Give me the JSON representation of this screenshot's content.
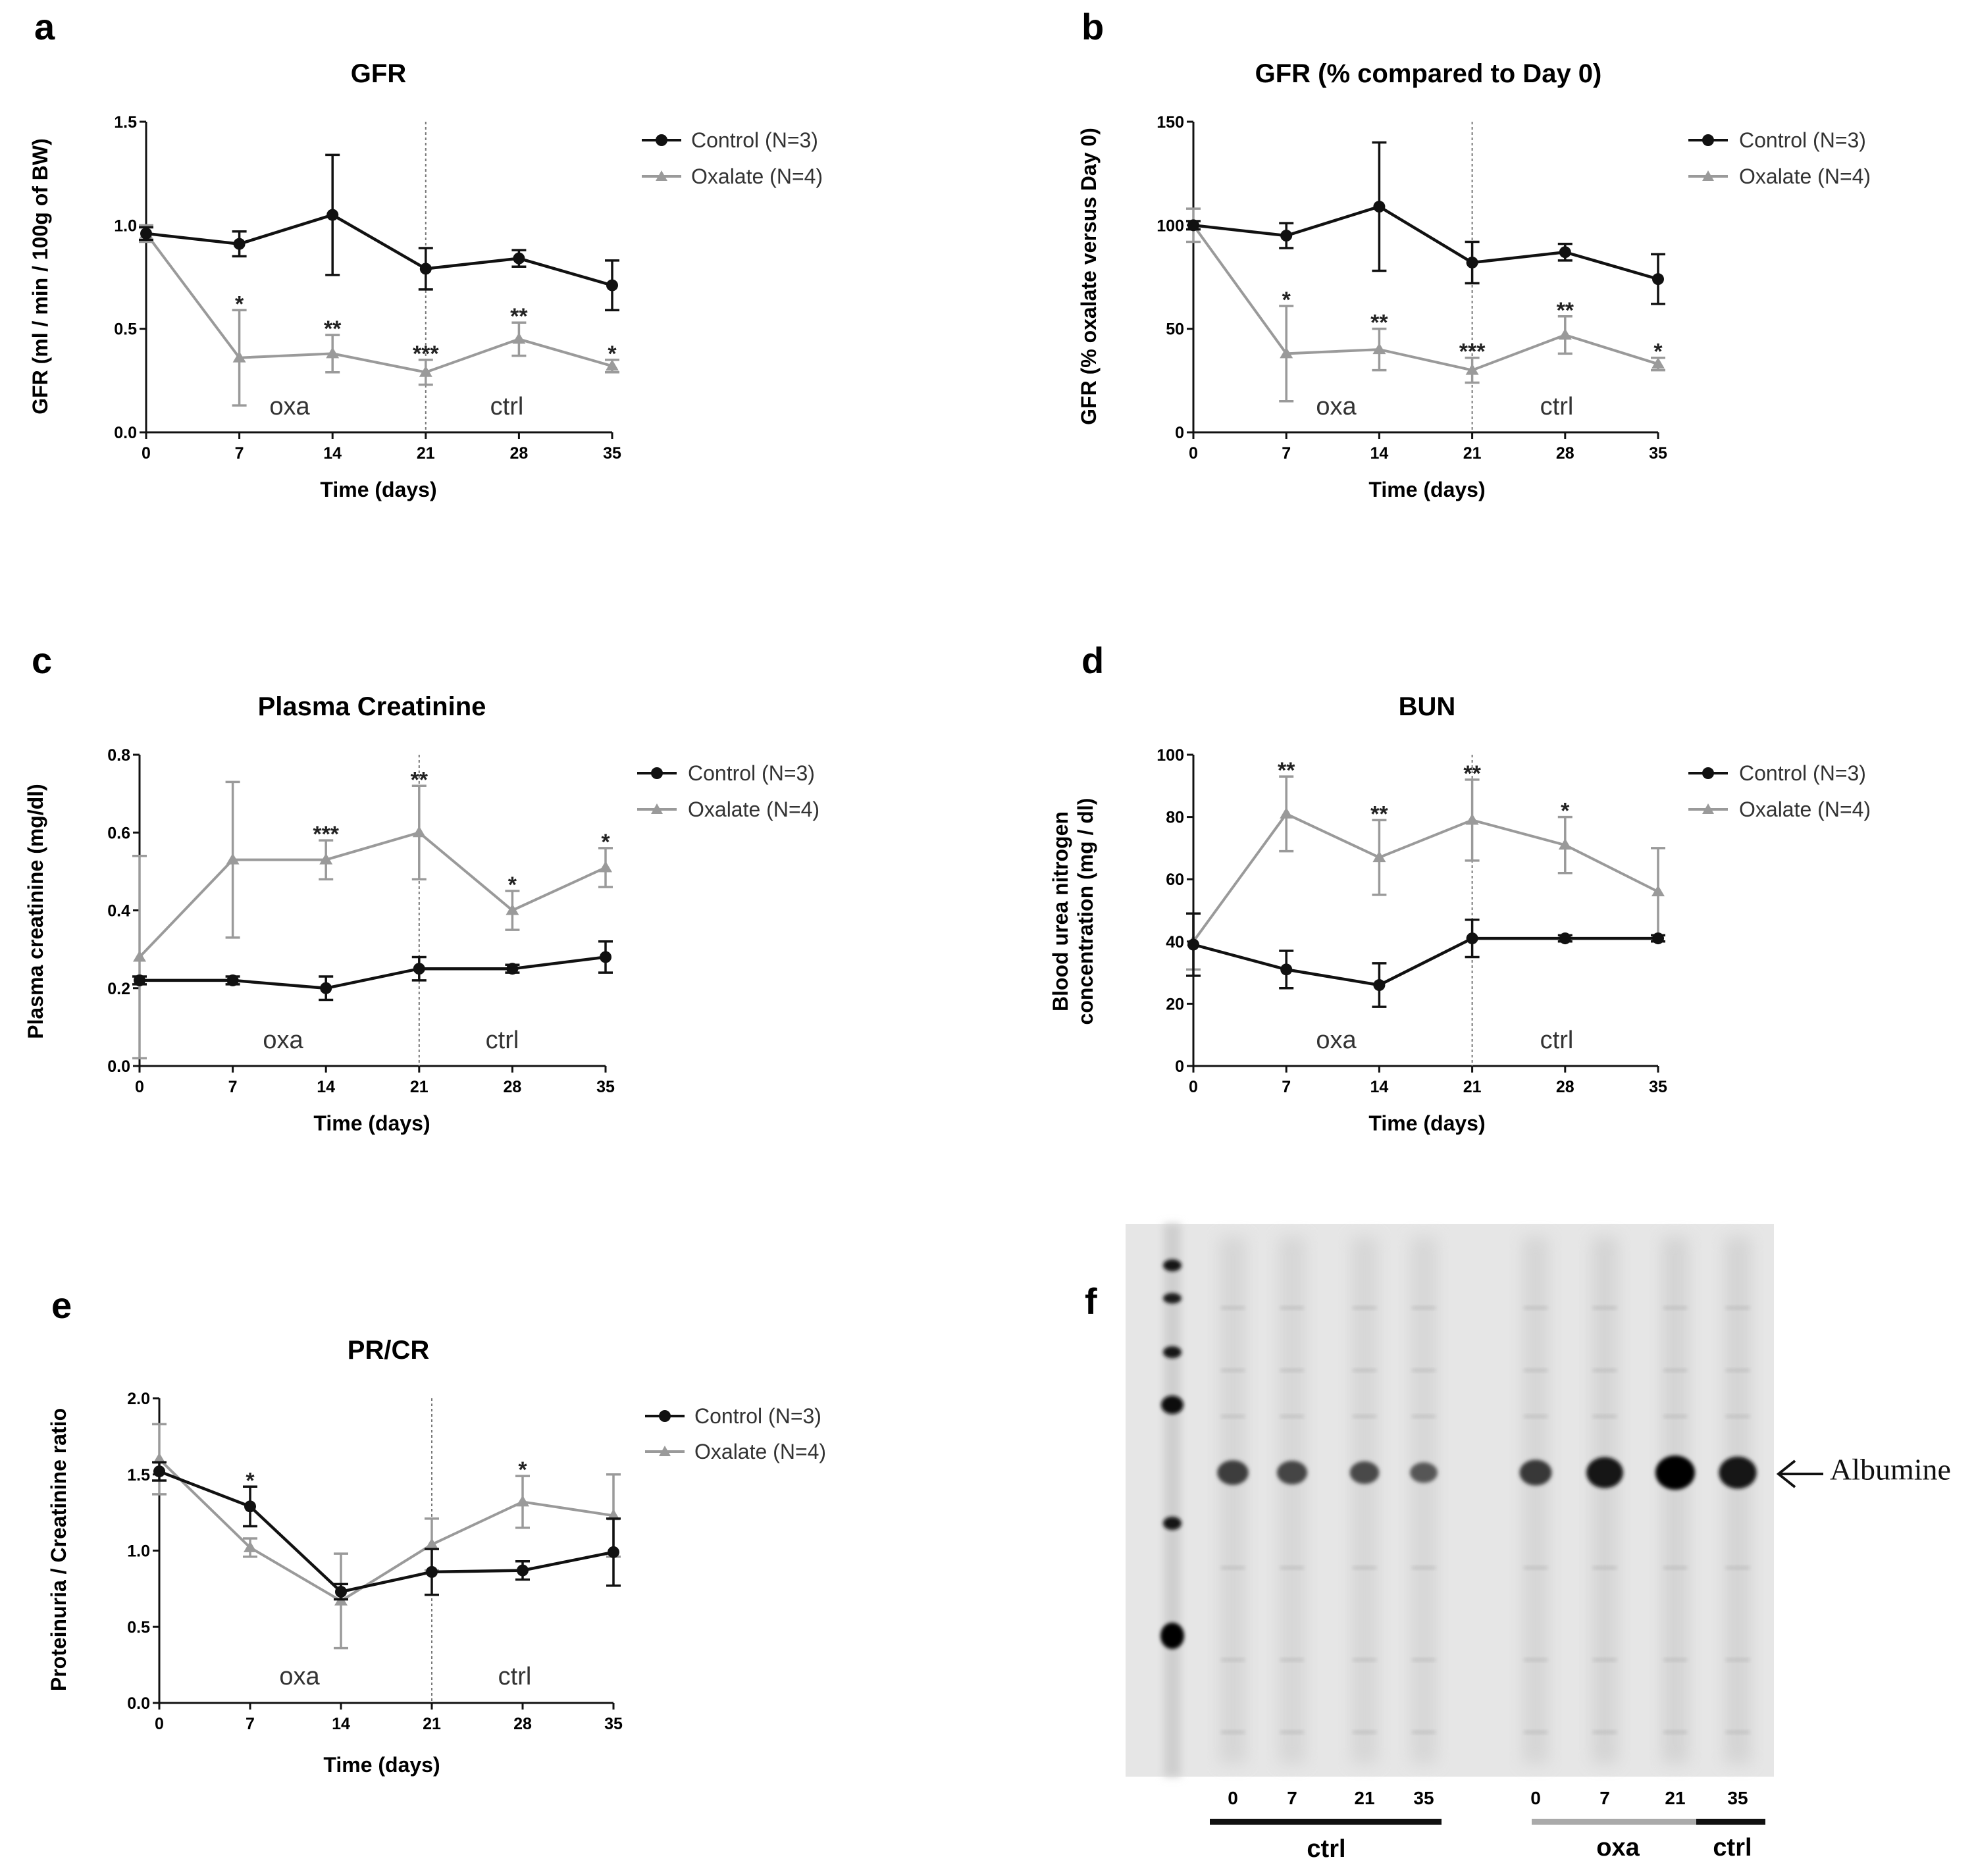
{
  "colors": {
    "control": "#111111",
    "oxalate": "#9a9a9a"
  },
  "chart_data": [
    {
      "panel": "a",
      "type": "line",
      "title": "GFR",
      "xlabel": "Time (days)",
      "ylabel": "GFR (ml / min / 100g of BW)",
      "x": [
        0,
        7,
        14,
        21,
        28,
        35
      ],
      "xticks": [
        "0",
        "7",
        "14",
        "21",
        "28",
        "35"
      ],
      "ylim": [
        0,
        1.5
      ],
      "yticks": [
        "0.0",
        "0.5",
        "1.0",
        "1.5"
      ],
      "yticks_values": [
        0,
        0.5,
        1.0,
        1.5
      ],
      "divider_x": 21,
      "annotations": [
        "oxa",
        "ctrl"
      ],
      "legend_position": "right",
      "series": [
        {
          "name": "Control (N=3)",
          "values": [
            0.96,
            0.91,
            1.05,
            0.79,
            0.84,
            0.71
          ],
          "errors": [
            0.03,
            0.06,
            0.29,
            0.1,
            0.04,
            0.12
          ]
        },
        {
          "name": "Oxalate (N=4)",
          "values": [
            0.96,
            0.36,
            0.38,
            0.29,
            0.45,
            0.32
          ],
          "errors": [
            0.04,
            0.23,
            0.09,
            0.06,
            0.08,
            0.03
          ]
        }
      ],
      "significance": [
        "",
        "*",
        "**",
        "***",
        "**",
        "*"
      ]
    },
    {
      "panel": "b",
      "type": "line",
      "title": "GFR (% compared to Day 0)",
      "xlabel": "Time (days)",
      "ylabel": "GFR (% oxalate versus Day 0)",
      "x": [
        0,
        7,
        14,
        21,
        28,
        35
      ],
      "xticks": [
        "0",
        "7",
        "14",
        "21",
        "28",
        "35"
      ],
      "ylim": [
        0,
        150
      ],
      "yticks": [
        "0",
        "50",
        "100",
        "150"
      ],
      "yticks_values": [
        0,
        50,
        100,
        150
      ],
      "divider_x": 21,
      "annotations": [
        "oxa",
        "ctrl"
      ],
      "legend_position": "right",
      "series": [
        {
          "name": "Control (N=3)",
          "values": [
            100,
            95,
            109,
            82,
            87,
            74
          ],
          "errors": [
            2,
            6,
            31,
            10,
            4,
            12
          ]
        },
        {
          "name": "Oxalate (N=4)",
          "values": [
            100,
            38,
            40,
            30,
            47,
            33
          ],
          "errors": [
            8,
            23,
            10,
            6,
            9,
            3
          ]
        }
      ],
      "significance": [
        "",
        "*",
        "**",
        "***",
        "**",
        "*"
      ]
    },
    {
      "panel": "c",
      "type": "line",
      "title": "Plasma Creatinine",
      "xlabel": "Time (days)",
      "ylabel": "Plasma creatinine (mg/dl)",
      "x": [
        0,
        7,
        14,
        21,
        28,
        35
      ],
      "xticks": [
        "0",
        "7",
        "14",
        "21",
        "28",
        "35"
      ],
      "ylim": [
        0,
        0.8
      ],
      "yticks": [
        "0.0",
        "0.2",
        "0.4",
        "0.6",
        "0.8"
      ],
      "yticks_values": [
        0,
        0.2,
        0.4,
        0.6,
        0.8
      ],
      "divider_x": 21,
      "annotations": [
        "oxa",
        "ctrl"
      ],
      "legend_position": "right",
      "series": [
        {
          "name": "Control (N=3)",
          "values": [
            0.22,
            0.22,
            0.2,
            0.25,
            0.25,
            0.28
          ],
          "errors": [
            0.01,
            0.01,
            0.03,
            0.03,
            0.01,
            0.04
          ]
        },
        {
          "name": "Oxalate (N=4)",
          "values": [
            0.28,
            0.53,
            0.53,
            0.6,
            0.4,
            0.51
          ],
          "errors": [
            0.26,
            0.2,
            0.05,
            0.12,
            0.05,
            0.05
          ]
        }
      ],
      "significance": [
        "",
        "",
        "***",
        "**",
        "*",
        "*"
      ]
    },
    {
      "panel": "d",
      "type": "line",
      "title": "BUN",
      "xlabel": "Time (days)",
      "ylabel": "Blood urea nitrogen concentration (mg / dl)",
      "ylabel_lines": [
        "Blood urea nitrogen",
        "concentration (mg / dl)"
      ],
      "x": [
        0,
        7,
        14,
        21,
        28,
        35
      ],
      "xticks": [
        "0",
        "7",
        "14",
        "21",
        "28",
        "35"
      ],
      "ylim": [
        0,
        100
      ],
      "yticks": [
        "0",
        "20",
        "40",
        "60",
        "80",
        "100"
      ],
      "yticks_values": [
        0,
        20,
        40,
        60,
        80,
        100
      ],
      "divider_x": 21,
      "annotations": [
        "oxa",
        "ctrl"
      ],
      "legend_position": "right",
      "series": [
        {
          "name": "Control (N=3)",
          "values": [
            39,
            31,
            26,
            41,
            41,
            41
          ],
          "errors": [
            10,
            6,
            7,
            6,
            1,
            1
          ]
        },
        {
          "name": "Oxalate (N=4)",
          "values": [
            40,
            81,
            67,
            79,
            71,
            56
          ],
          "errors": [
            9,
            12,
            12,
            13,
            9,
            14
          ]
        }
      ],
      "significance": [
        "",
        "**",
        "**",
        "**",
        "*",
        ""
      ]
    },
    {
      "panel": "e",
      "type": "line",
      "title": "PR/CR",
      "xlabel": "Time (days)",
      "ylabel": "Proteinuria / Creatinine ratio",
      "x": [
        0,
        7,
        14,
        21,
        28,
        35
      ],
      "xticks": [
        "0",
        "7",
        "14",
        "21",
        "28",
        "35"
      ],
      "ylim": [
        0,
        2.0
      ],
      "yticks": [
        "0.0",
        "0.5",
        "1.0",
        "1.5",
        "2.0"
      ],
      "yticks_values": [
        0,
        0.5,
        1.0,
        1.5,
        2.0
      ],
      "divider_x": 21,
      "annotations": [
        "oxa",
        "ctrl"
      ],
      "legend_position": "right",
      "series": [
        {
          "name": "Control (N=3)",
          "values": [
            1.52,
            1.29,
            0.73,
            0.86,
            0.87,
            0.99
          ],
          "errors": [
            0.06,
            0.13,
            0.05,
            0.15,
            0.06,
            0.22
          ]
        },
        {
          "name": "Oxalate (N=4)",
          "values": [
            1.6,
            1.02,
            0.67,
            1.04,
            1.32,
            1.23
          ],
          "errors": [
            0.23,
            0.06,
            0.31,
            0.17,
            0.17,
            0.27
          ]
        }
      ],
      "significance": [
        "",
        "*",
        "",
        "",
        "*",
        ""
      ]
    }
  ],
  "panel_labels": [
    "a",
    "b",
    "c",
    "d",
    "e",
    "f"
  ],
  "gel": {
    "panel": "f",
    "lane_labels": [
      "0",
      "7",
      "21",
      "35",
      "0",
      "7",
      "21",
      "35"
    ],
    "albumin_intensity": [
      0.55,
      0.5,
      0.45,
      0.35,
      0.6,
      0.85,
      1.0,
      0.9
    ],
    "group_labels": [
      "ctrl",
      "oxa",
      "ctrl"
    ],
    "band_label": "Albumine"
  }
}
